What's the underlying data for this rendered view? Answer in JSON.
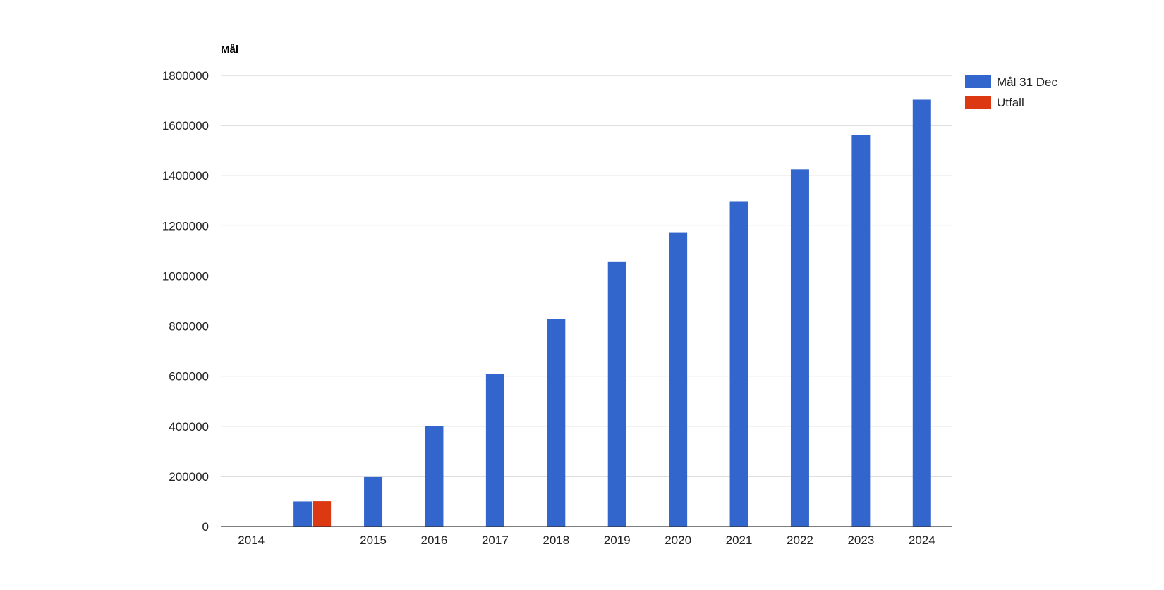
{
  "chart_data": {
    "type": "bar",
    "title": "",
    "ylabel": "Mål",
    "xlabel": "",
    "categories": [
      "2014",
      "",
      "2015",
      "2016",
      "2017",
      "2018",
      "2019",
      "2020",
      "2021",
      "2022",
      "2023",
      "2024"
    ],
    "series": [
      {
        "name": "Mål 31 Dec",
        "color": "#3366cc",
        "values": [
          0,
          100000,
          200000,
          400000,
          610000,
          828000,
          1058000,
          1174000,
          1298000,
          1425000,
          1562000,
          1703000
        ]
      },
      {
        "name": "Utfall",
        "color": "#dc3912",
        "values": [
          null,
          101000,
          null,
          null,
          null,
          null,
          null,
          null,
          null,
          null,
          null,
          null
        ]
      }
    ],
    "ylim": [
      0,
      1800000
    ],
    "yticks": [
      "0",
      "200000",
      "400000",
      "600000",
      "800000",
      "1000000",
      "1200000",
      "1400000",
      "1600000",
      "1800000"
    ],
    "grid": true,
    "legend_position": "right"
  }
}
